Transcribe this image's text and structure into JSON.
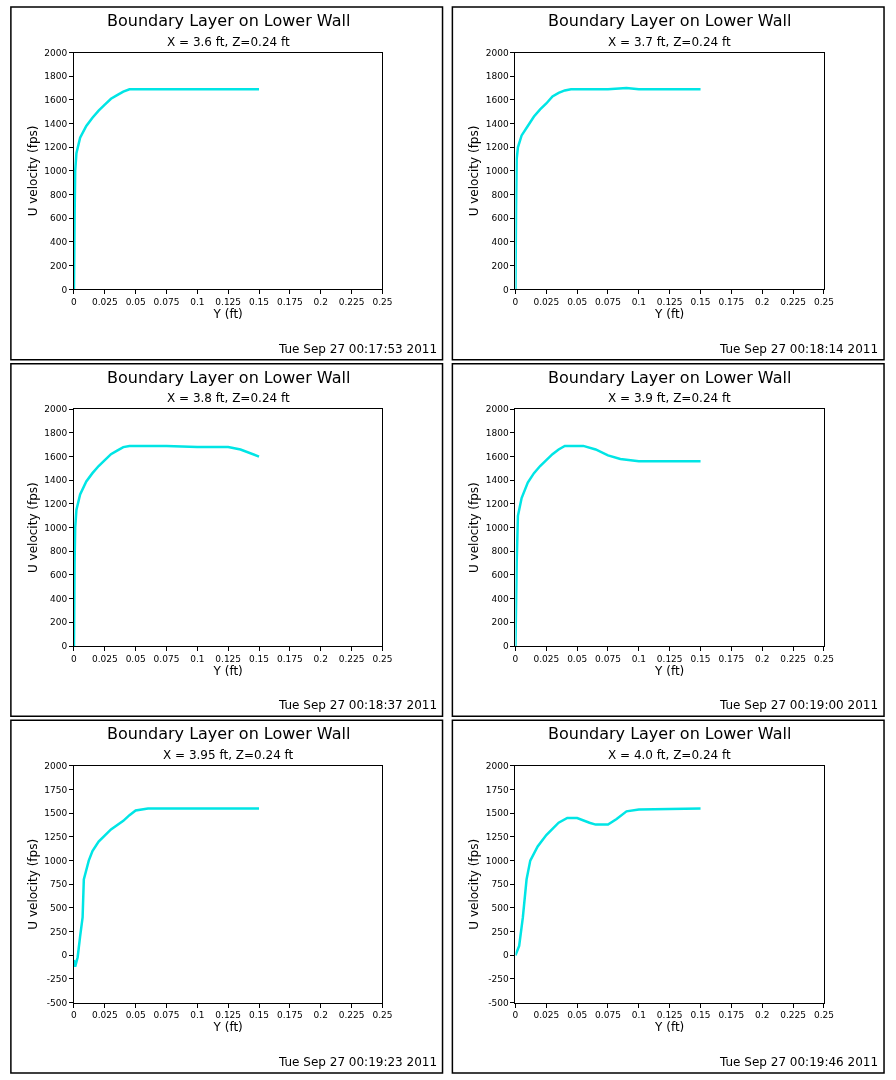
{
  "chart_data": [
    {
      "type": "line",
      "title": "Boundary Layer on Lower Wall",
      "subtitle": "X = 3.6 ft, Z=0.24 ft",
      "xlabel": "Y (ft)",
      "ylabel": "U velocity (fps)",
      "annotations": [
        "Tue Sep 27 00:17:53 2011"
      ],
      "xlim": [
        0,
        0.25
      ],
      "xticks": [
        0,
        0.025,
        0.05,
        0.075,
        0.1,
        0.125,
        0.15,
        0.175,
        0.2,
        0.225,
        0.25
      ],
      "ylim": [
        0,
        2000
      ],
      "yticks": [
        0,
        200,
        400,
        600,
        800,
        1000,
        1200,
        1400,
        1600,
        1800,
        2000
      ],
      "series": [
        {
          "color": "#00e5e5",
          "x": [
            0,
            0.0005,
            0.001,
            0.002,
            0.005,
            0.01,
            0.015,
            0.02,
            0.025,
            0.03,
            0.035,
            0.04,
            0.045,
            0.05,
            0.1,
            0.15
          ],
          "values": [
            0,
            600,
            1000,
            1150,
            1280,
            1380,
            1450,
            1510,
            1560,
            1610,
            1640,
            1670,
            1690,
            1690,
            1690,
            1690
          ]
        }
      ]
    },
    {
      "type": "line",
      "title": "Boundary Layer on Lower Wall",
      "subtitle": "X = 3.7 ft, Z=0.24 ft",
      "xlabel": "Y (ft)",
      "ylabel": "U velocity (fps)",
      "annotations": [
        "Tue Sep 27 00:18:14 2011"
      ],
      "xlim": [
        0,
        0.25
      ],
      "xticks": [
        0,
        0.025,
        0.05,
        0.075,
        0.1,
        0.125,
        0.15,
        0.175,
        0.2,
        0.225,
        0.25
      ],
      "ylim": [
        0,
        2000
      ],
      "yticks": [
        0,
        200,
        400,
        600,
        800,
        1000,
        1200,
        1400,
        1600,
        1800,
        2000
      ],
      "series": [
        {
          "color": "#00e5e5",
          "x": [
            0,
            0.0005,
            0.001,
            0.002,
            0.005,
            0.01,
            0.015,
            0.02,
            0.025,
            0.03,
            0.035,
            0.04,
            0.045,
            0.05,
            0.075,
            0.09,
            0.1,
            0.15
          ],
          "values": [
            0,
            700,
            1100,
            1200,
            1300,
            1380,
            1460,
            1520,
            1570,
            1630,
            1660,
            1680,
            1690,
            1690,
            1690,
            1700,
            1690,
            1690
          ]
        }
      ]
    },
    {
      "type": "line",
      "title": "Boundary Layer on Lower Wall",
      "subtitle": "X = 3.8 ft, Z=0.24 ft",
      "xlabel": "Y (ft)",
      "ylabel": "U velocity (fps)",
      "annotations": [
        "Tue Sep 27 00:18:37 2011"
      ],
      "xlim": [
        0,
        0.25
      ],
      "xticks": [
        0,
        0.025,
        0.05,
        0.075,
        0.1,
        0.125,
        0.15,
        0.175,
        0.2,
        0.225,
        0.25
      ],
      "ylim": [
        0,
        2000
      ],
      "yticks": [
        0,
        200,
        400,
        600,
        800,
        1000,
        1200,
        1400,
        1600,
        1800,
        2000
      ],
      "series": [
        {
          "color": "#00e5e5",
          "x": [
            0,
            0.0005,
            0.001,
            0.002,
            0.005,
            0.01,
            0.015,
            0.02,
            0.025,
            0.03,
            0.035,
            0.04,
            0.045,
            0.05,
            0.075,
            0.1,
            0.125,
            0.135,
            0.15
          ],
          "values": [
            0,
            700,
            1000,
            1150,
            1280,
            1390,
            1460,
            1520,
            1570,
            1620,
            1650,
            1680,
            1690,
            1690,
            1690,
            1680,
            1680,
            1660,
            1600
          ]
        }
      ]
    },
    {
      "type": "line",
      "title": "Boundary Layer on Lower Wall",
      "subtitle": "X = 3.9 ft, Z=0.24 ft",
      "xlabel": "Y (ft)",
      "ylabel": "U velocity (fps)",
      "annotations": [
        "Tue Sep 27 00:19:00 2011"
      ],
      "xlim": [
        0,
        0.25
      ],
      "xticks": [
        0,
        0.025,
        0.05,
        0.075,
        0.1,
        0.125,
        0.15,
        0.175,
        0.2,
        0.225,
        0.25
      ],
      "ylim": [
        0,
        2000
      ],
      "yticks": [
        0,
        200,
        400,
        600,
        800,
        1000,
        1200,
        1400,
        1600,
        1800,
        2000
      ],
      "series": [
        {
          "color": "#00e5e5",
          "x": [
            0,
            0.001,
            0.002,
            0.005,
            0.01,
            0.015,
            0.02,
            0.025,
            0.03,
            0.035,
            0.04,
            0.055,
            0.065,
            0.075,
            0.085,
            0.1,
            0.15
          ],
          "values": [
            0,
            700,
            1100,
            1250,
            1380,
            1460,
            1520,
            1570,
            1620,
            1660,
            1690,
            1690,
            1660,
            1610,
            1580,
            1560,
            1560
          ]
        }
      ]
    },
    {
      "type": "line",
      "title": "Boundary Layer on Lower Wall",
      "subtitle": "X = 3.95 ft, Z=0.24 ft",
      "xlabel": "Y (ft)",
      "ylabel": "U velocity (fps)",
      "annotations": [
        "Tue Sep 27 00:19:23 2011"
      ],
      "xlim": [
        0,
        0.25
      ],
      "xticks": [
        0,
        0.025,
        0.05,
        0.075,
        0.1,
        0.125,
        0.15,
        0.175,
        0.2,
        0.225,
        0.25
      ],
      "ylim": [
        -500,
        2000
      ],
      "yticks": [
        -500,
        -250,
        0,
        250,
        500,
        750,
        1000,
        1250,
        1500,
        1750,
        2000
      ],
      "series": [
        {
          "color": "#00e5e5",
          "x": [
            0,
            0.001,
            0.003,
            0.005,
            0.007,
            0.008,
            0.012,
            0.015,
            0.02,
            0.03,
            0.04,
            0.045,
            0.05,
            0.06,
            0.15
          ],
          "values": [
            -50,
            -120,
            -20,
            200,
            400,
            800,
            1000,
            1100,
            1200,
            1330,
            1420,
            1480,
            1530,
            1550,
            1550
          ]
        }
      ]
    },
    {
      "type": "line",
      "title": "Boundary Layer on Lower Wall",
      "subtitle": "X = 4.0 ft, Z=0.24 ft",
      "xlabel": "Y (ft)",
      "ylabel": "U velocity (fps)",
      "annotations": [
        "Tue Sep 27 00:19:46 2011"
      ],
      "xlim": [
        0,
        0.25
      ],
      "xticks": [
        0,
        0.025,
        0.05,
        0.075,
        0.1,
        0.125,
        0.15,
        0.175,
        0.2,
        0.225,
        0.25
      ],
      "ylim": [
        -500,
        2000
      ],
      "yticks": [
        -500,
        -250,
        0,
        250,
        500,
        750,
        1000,
        1250,
        1500,
        1750,
        2000
      ],
      "series": [
        {
          "color": "#00e5e5",
          "x": [
            0,
            0.003,
            0.006,
            0.009,
            0.012,
            0.018,
            0.025,
            0.035,
            0.042,
            0.05,
            0.06,
            0.065,
            0.075,
            0.082,
            0.09,
            0.1,
            0.15
          ],
          "values": [
            0,
            100,
            400,
            800,
            1000,
            1150,
            1270,
            1400,
            1450,
            1450,
            1400,
            1380,
            1380,
            1440,
            1520,
            1540,
            1550
          ]
        }
      ]
    }
  ]
}
